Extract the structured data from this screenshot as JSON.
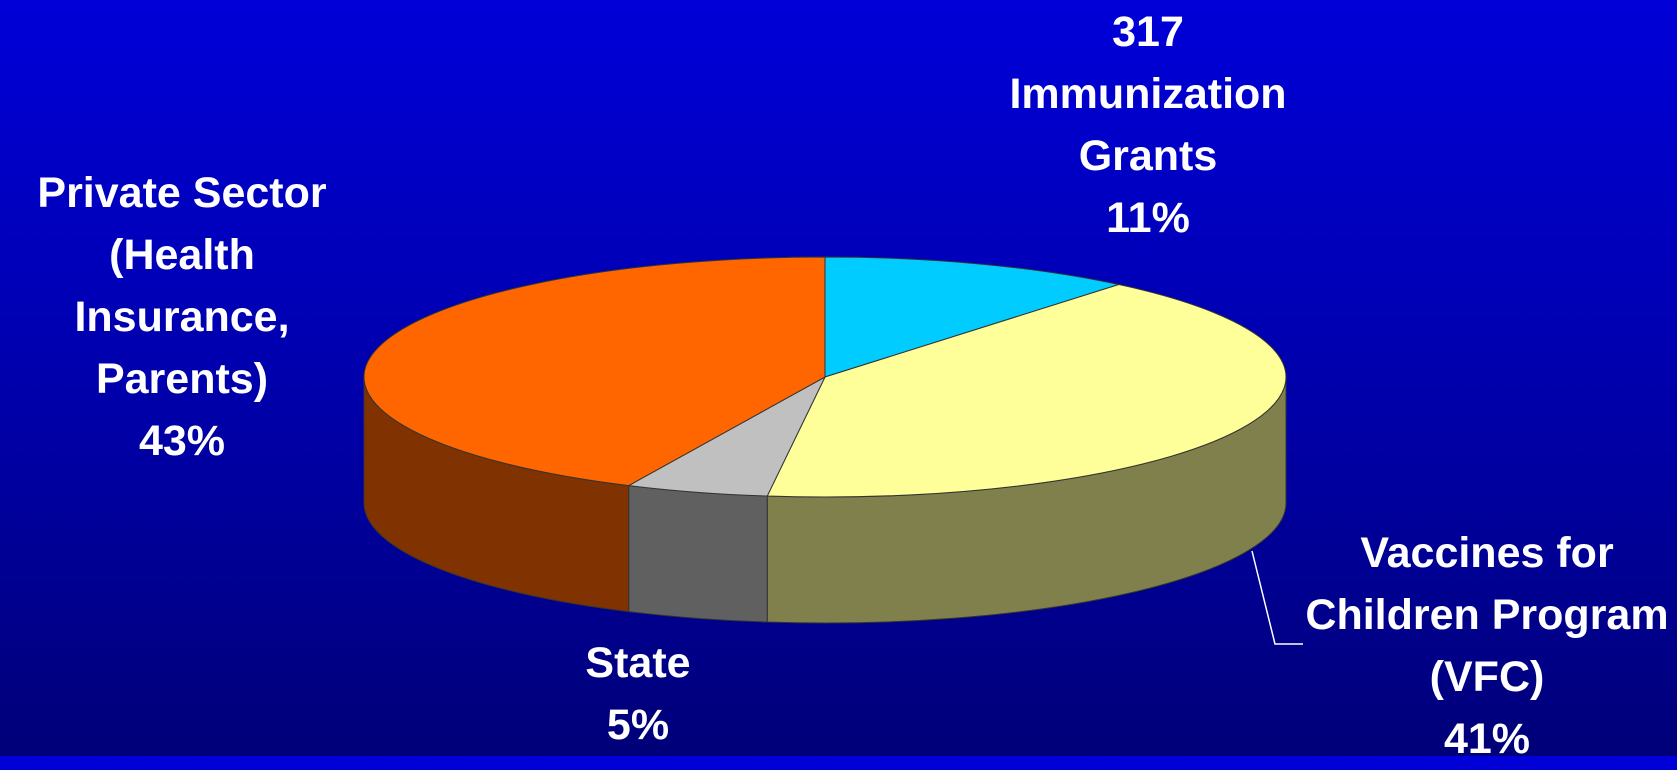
{
  "chart_data": {
    "type": "pie3d",
    "categories": [
      "317 Immunization Grants",
      "Vaccines for Children Program (VFC)",
      "State",
      "Private Sector (Health Insurance, Parents)"
    ],
    "values": [
      11,
      41,
      5,
      43
    ],
    "value_labels": [
      "11%",
      "41%",
      "5%",
      "43%"
    ],
    "colors": [
      "#00ccff",
      "#ffff99",
      "#c0c0c0",
      "#ff6600"
    ]
  }
}
